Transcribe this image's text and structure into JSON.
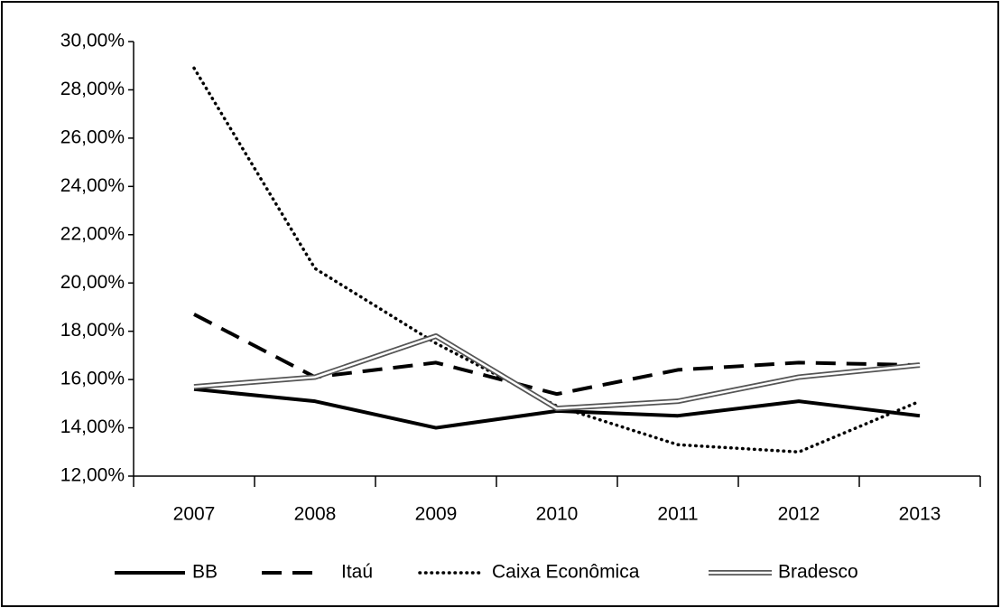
{
  "chart_data": {
    "type": "line",
    "categories": [
      "2007",
      "2008",
      "2009",
      "2010",
      "2011",
      "2012",
      "2013"
    ],
    "series": [
      {
        "name": "BB",
        "color": "#000000",
        "values": [
          15.6,
          15.1,
          14.0,
          14.7,
          14.5,
          15.1,
          14.5
        ]
      },
      {
        "name": "Itaú",
        "color": "#000000",
        "values": [
          18.7,
          16.1,
          16.7,
          15.4,
          16.4,
          16.7,
          16.6
        ]
      },
      {
        "name": "Caixa Econômica",
        "color": "#000000",
        "values": [
          28.9,
          20.6,
          17.5,
          14.9,
          13.3,
          13.0,
          15.1
        ]
      },
      {
        "name": "Bradesco",
        "color": "#555555",
        "values": [
          15.7,
          16.1,
          17.8,
          14.8,
          15.1,
          16.1,
          16.6
        ]
      }
    ],
    "ylim": [
      12,
      30
    ],
    "yticks": [
      {
        "value": 12,
        "label": "12,00%"
      },
      {
        "value": 14,
        "label": "14,00%"
      },
      {
        "value": 16,
        "label": "16,00%"
      },
      {
        "value": 18,
        "label": "18,00%"
      },
      {
        "value": 20,
        "label": "20,00%"
      },
      {
        "value": 22,
        "label": "22,00%"
      },
      {
        "value": 24,
        "label": "24,00%"
      },
      {
        "value": 26,
        "label": "26,00%"
      },
      {
        "value": 28,
        "label": "28,00%"
      },
      {
        "value": 30,
        "label": "30,00%"
      }
    ],
    "grid": false,
    "legend": "bottom"
  }
}
